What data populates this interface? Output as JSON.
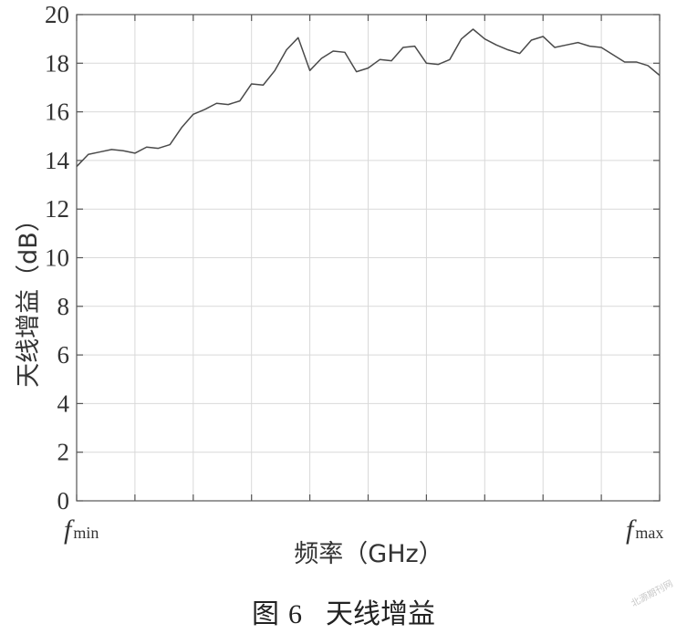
{
  "chart_data": {
    "type": "line",
    "xlabel": "频率（GHz）",
    "ylabel": "天线增益（dB）",
    "x_end_labels": [
      {
        "main": "f",
        "sub": "min"
      },
      {
        "main": "f",
        "sub": "max"
      }
    ],
    "ylim": [
      0,
      20
    ],
    "yticks": [
      0,
      2,
      4,
      6,
      8,
      10,
      12,
      14,
      16,
      18,
      20
    ],
    "grid": true,
    "line_color": "#4a4a4a",
    "series": [
      {
        "x": [
          0,
          1,
          2,
          3,
          4,
          5,
          6,
          7,
          8,
          9,
          10,
          11,
          12,
          13,
          14,
          15,
          16,
          17,
          18,
          19,
          20,
          21,
          22,
          23,
          24,
          25,
          26,
          27,
          28,
          29,
          30,
          31,
          32,
          33,
          34,
          35,
          36,
          37,
          38,
          39,
          40,
          41,
          42,
          43,
          44,
          45,
          46,
          47,
          48,
          49,
          50
        ],
        "values": [
          13.75,
          14.25,
          14.35,
          14.45,
          14.4,
          14.3,
          14.55,
          14.5,
          14.65,
          15.35,
          15.9,
          16.1,
          16.35,
          16.3,
          16.45,
          17.15,
          17.1,
          17.7,
          18.55,
          19.05,
          17.7,
          18.2,
          18.5,
          18.45,
          17.65,
          17.8,
          18.15,
          18.1,
          18.65,
          18.7,
          18.0,
          17.95,
          18.15,
          19.0,
          19.4,
          19.0,
          18.75,
          18.55,
          18.4,
          18.95,
          19.1,
          18.65,
          18.75,
          18.85,
          18.7,
          18.65,
          18.35,
          18.05,
          18.05,
          17.9,
          17.5
        ]
      }
    ]
  },
  "caption": {
    "prefix": "图",
    "number": "6",
    "title": "天线增益"
  },
  "watermark": "北源期刊网"
}
